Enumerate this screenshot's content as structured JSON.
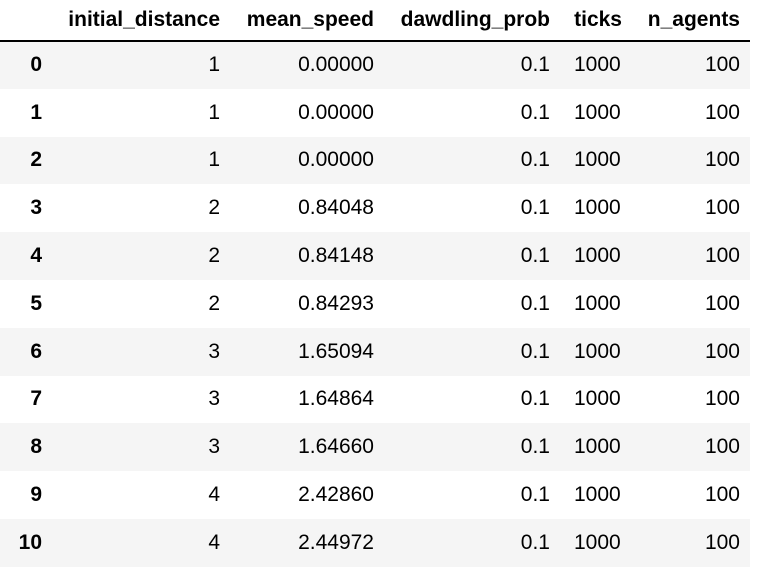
{
  "table": {
    "columns": [
      "",
      "initial_distance",
      "mean_speed",
      "dawdling_prob",
      "ticks",
      "n_agents"
    ],
    "rows": [
      {
        "index": "0",
        "initial_distance": "1",
        "mean_speed": "0.00000",
        "dawdling_prob": "0.1",
        "ticks": "1000",
        "n_agents": "100"
      },
      {
        "index": "1",
        "initial_distance": "1",
        "mean_speed": "0.00000",
        "dawdling_prob": "0.1",
        "ticks": "1000",
        "n_agents": "100"
      },
      {
        "index": "2",
        "initial_distance": "1",
        "mean_speed": "0.00000",
        "dawdling_prob": "0.1",
        "ticks": "1000",
        "n_agents": "100"
      },
      {
        "index": "3",
        "initial_distance": "2",
        "mean_speed": "0.84048",
        "dawdling_prob": "0.1",
        "ticks": "1000",
        "n_agents": "100"
      },
      {
        "index": "4",
        "initial_distance": "2",
        "mean_speed": "0.84148",
        "dawdling_prob": "0.1",
        "ticks": "1000",
        "n_agents": "100"
      },
      {
        "index": "5",
        "initial_distance": "2",
        "mean_speed": "0.84293",
        "dawdling_prob": "0.1",
        "ticks": "1000",
        "n_agents": "100"
      },
      {
        "index": "6",
        "initial_distance": "3",
        "mean_speed": "1.65094",
        "dawdling_prob": "0.1",
        "ticks": "1000",
        "n_agents": "100"
      },
      {
        "index": "7",
        "initial_distance": "3",
        "mean_speed": "1.64864",
        "dawdling_prob": "0.1",
        "ticks": "1000",
        "n_agents": "100"
      },
      {
        "index": "8",
        "initial_distance": "3",
        "mean_speed": "1.64660",
        "dawdling_prob": "0.1",
        "ticks": "1000",
        "n_agents": "100"
      },
      {
        "index": "9",
        "initial_distance": "4",
        "mean_speed": "2.42860",
        "dawdling_prob": "0.1",
        "ticks": "1000",
        "n_agents": "100"
      },
      {
        "index": "10",
        "initial_distance": "4",
        "mean_speed": "2.44972",
        "dawdling_prob": "0.1",
        "ticks": "1000",
        "n_agents": "100"
      }
    ]
  },
  "colors": {
    "stripe": "#f5f5f5",
    "background": "#ffffff",
    "text": "#000000"
  }
}
